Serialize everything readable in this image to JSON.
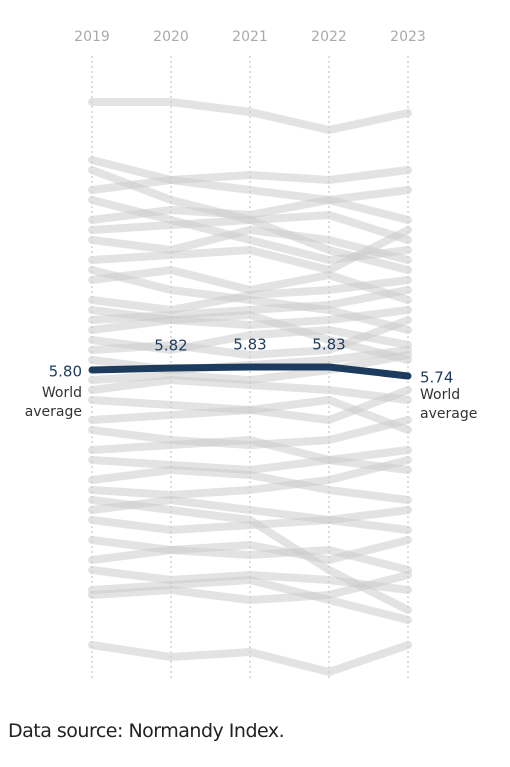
{
  "chart_data": {
    "type": "line",
    "x": [
      "2019",
      "2020",
      "2021",
      "2022",
      "2023"
    ],
    "ylim": [
      2.7,
      8.6
    ],
    "source": "Data source: Normandy Index.",
    "series": [
      {
        "name": "World average",
        "color": "#1d3b5c",
        "values": [
          5.8,
          5.82,
          5.83,
          5.83,
          5.74
        ],
        "value_labels": [
          "5.80",
          "5.82",
          "5.83",
          "5.83",
          "5.74"
        ]
      },
      {
        "color": "#cccccc",
        "values": [
          8.48,
          8.48,
          8.38,
          8.2,
          8.37
        ]
      },
      {
        "color": "#cccccc",
        "values": [
          3.05,
          2.93,
          2.98,
          2.78,
          3.05
        ]
      },
      {
        "color": "#cccccc",
        "values": [
          7.9,
          7.7,
          7.6,
          7.5,
          7.3
        ]
      },
      {
        "color": "#cccccc",
        "values": [
          7.6,
          7.7,
          7.75,
          7.7,
          7.8
        ]
      },
      {
        "color": "#cccccc",
        "values": [
          7.3,
          7.4,
          7.35,
          7.5,
          7.6
        ]
      },
      {
        "color": "#cccccc",
        "values": [
          7.1,
          7.0,
          7.2,
          7.1,
          6.9
        ]
      },
      {
        "color": "#cccccc",
        "values": [
          6.9,
          6.95,
          7.0,
          6.8,
          7.2
        ]
      },
      {
        "color": "#cccccc",
        "values": [
          6.7,
          6.8,
          6.6,
          6.75,
          6.5
        ]
      },
      {
        "color": "#cccccc",
        "values": [
          6.5,
          6.4,
          6.55,
          6.6,
          6.7
        ]
      },
      {
        "color": "#cccccc",
        "values": [
          6.4,
          6.3,
          6.35,
          6.1,
          5.9
        ]
      },
      {
        "color": "#cccccc",
        "values": [
          6.2,
          6.3,
          6.25,
          6.3,
          6.4
        ]
      },
      {
        "color": "#cccccc",
        "values": [
          6.1,
          6.0,
          6.15,
          6.2,
          6.05
        ]
      },
      {
        "color": "#cccccc",
        "values": [
          6.0,
          6.05,
          5.95,
          6.0,
          6.3
        ]
      },
      {
        "color": "#cccccc",
        "values": [
          5.6,
          5.7,
          5.65,
          5.6,
          5.5
        ]
      },
      {
        "color": "#cccccc",
        "values": [
          5.5,
          5.45,
          5.4,
          5.3,
          5.6
        ]
      },
      {
        "color": "#cccccc",
        "values": [
          5.3,
          5.35,
          5.4,
          5.5,
          5.2
        ]
      },
      {
        "color": "#cccccc",
        "values": [
          5.2,
          5.1,
          5.05,
          5.1,
          5.3
        ]
      },
      {
        "color": "#cccccc",
        "values": [
          5.0,
          5.05,
          5.1,
          4.9,
          4.8
        ]
      },
      {
        "color": "#cccccc",
        "values": [
          4.9,
          4.85,
          4.8,
          4.9,
          5.0
        ]
      },
      {
        "color": "#cccccc",
        "values": [
          4.7,
          4.8,
          4.75,
          4.6,
          4.5
        ]
      },
      {
        "color": "#cccccc",
        "values": [
          4.6,
          4.55,
          4.6,
          4.7,
          4.9
        ]
      },
      {
        "color": "#cccccc",
        "values": [
          4.4,
          4.5,
          4.4,
          4.3,
          4.2
        ]
      },
      {
        "color": "#cccccc",
        "values": [
          4.3,
          4.2,
          4.25,
          4.3,
          4.4
        ]
      },
      {
        "color": "#cccccc",
        "values": [
          4.1,
          4.0,
          3.95,
          4.0,
          3.8
        ]
      },
      {
        "color": "#cccccc",
        "values": [
          3.9,
          4.0,
          4.05,
          3.9,
          4.1
        ]
      },
      {
        "color": "#cccccc",
        "values": [
          3.8,
          3.7,
          3.75,
          3.7,
          3.6
        ]
      },
      {
        "color": "#cccccc",
        "values": [
          3.6,
          3.65,
          3.7,
          3.5,
          3.3
        ]
      },
      {
        "color": "#cccccc",
        "values": [
          3.55,
          3.6,
          3.5,
          3.55,
          3.75
        ]
      },
      {
        "color": "#cccccc",
        "values": [
          7.8,
          7.5,
          7.3,
          7.0,
          6.8
        ]
      },
      {
        "color": "#cccccc",
        "values": [
          7.5,
          7.3,
          7.1,
          6.9,
          7.0
        ]
      },
      {
        "color": "#cccccc",
        "values": [
          6.8,
          6.6,
          6.5,
          6.4,
          6.2
        ]
      },
      {
        "color": "#cccccc",
        "values": [
          5.9,
          5.8,
          5.85,
          5.9,
          6.0
        ]
      },
      {
        "color": "#cccccc",
        "values": [
          5.7,
          5.75,
          5.7,
          5.8,
          5.95
        ]
      },
      {
        "color": "#cccccc",
        "values": [
          6.3,
          6.35,
          6.4,
          6.45,
          6.6
        ]
      },
      {
        "color": "#cccccc",
        "values": [
          4.5,
          4.4,
          4.3,
          3.8,
          3.4
        ]
      },
      {
        "color": "#cccccc",
        "values": [
          7.2,
          7.25,
          7.3,
          7.35,
          7.1
        ]
      }
    ]
  }
}
